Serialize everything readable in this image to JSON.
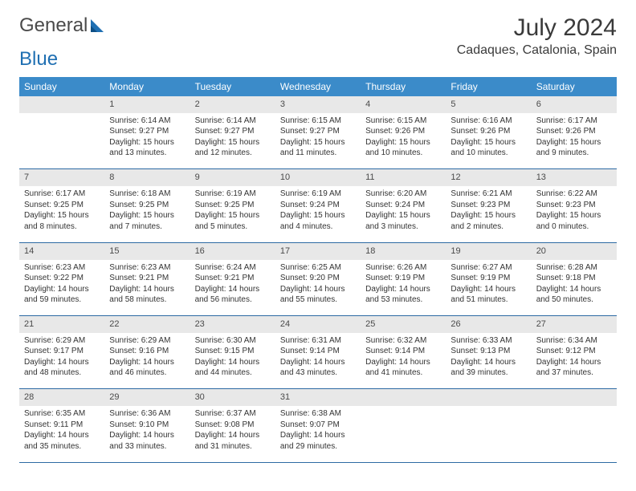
{
  "logo": {
    "part1": "General",
    "part2": "Blue"
  },
  "title": "July 2024",
  "location": "Cadaques, Catalonia, Spain",
  "colors": {
    "header_bg": "#3b8bc9",
    "header_text": "#ffffff",
    "daynum_bg": "#e8e8e8",
    "rule": "#2d6aa3",
    "logo_gray": "#4a4a4a",
    "logo_blue": "#1f6fb2"
  },
  "dayHeaders": [
    "Sunday",
    "Monday",
    "Tuesday",
    "Wednesday",
    "Thursday",
    "Friday",
    "Saturday"
  ],
  "weeks": [
    [
      null,
      {
        "n": "1",
        "sr": "6:14 AM",
        "ss": "9:27 PM",
        "dl": "15 hours and 13 minutes."
      },
      {
        "n": "2",
        "sr": "6:14 AM",
        "ss": "9:27 PM",
        "dl": "15 hours and 12 minutes."
      },
      {
        "n": "3",
        "sr": "6:15 AM",
        "ss": "9:27 PM",
        "dl": "15 hours and 11 minutes."
      },
      {
        "n": "4",
        "sr": "6:15 AM",
        "ss": "9:26 PM",
        "dl": "15 hours and 10 minutes."
      },
      {
        "n": "5",
        "sr": "6:16 AM",
        "ss": "9:26 PM",
        "dl": "15 hours and 10 minutes."
      },
      {
        "n": "6",
        "sr": "6:17 AM",
        "ss": "9:26 PM",
        "dl": "15 hours and 9 minutes."
      }
    ],
    [
      {
        "n": "7",
        "sr": "6:17 AM",
        "ss": "9:25 PM",
        "dl": "15 hours and 8 minutes."
      },
      {
        "n": "8",
        "sr": "6:18 AM",
        "ss": "9:25 PM",
        "dl": "15 hours and 7 minutes."
      },
      {
        "n": "9",
        "sr": "6:19 AM",
        "ss": "9:25 PM",
        "dl": "15 hours and 5 minutes."
      },
      {
        "n": "10",
        "sr": "6:19 AM",
        "ss": "9:24 PM",
        "dl": "15 hours and 4 minutes."
      },
      {
        "n": "11",
        "sr": "6:20 AM",
        "ss": "9:24 PM",
        "dl": "15 hours and 3 minutes."
      },
      {
        "n": "12",
        "sr": "6:21 AM",
        "ss": "9:23 PM",
        "dl": "15 hours and 2 minutes."
      },
      {
        "n": "13",
        "sr": "6:22 AM",
        "ss": "9:23 PM",
        "dl": "15 hours and 0 minutes."
      }
    ],
    [
      {
        "n": "14",
        "sr": "6:23 AM",
        "ss": "9:22 PM",
        "dl": "14 hours and 59 minutes."
      },
      {
        "n": "15",
        "sr": "6:23 AM",
        "ss": "9:21 PM",
        "dl": "14 hours and 58 minutes."
      },
      {
        "n": "16",
        "sr": "6:24 AM",
        "ss": "9:21 PM",
        "dl": "14 hours and 56 minutes."
      },
      {
        "n": "17",
        "sr": "6:25 AM",
        "ss": "9:20 PM",
        "dl": "14 hours and 55 minutes."
      },
      {
        "n": "18",
        "sr": "6:26 AM",
        "ss": "9:19 PM",
        "dl": "14 hours and 53 minutes."
      },
      {
        "n": "19",
        "sr": "6:27 AM",
        "ss": "9:19 PM",
        "dl": "14 hours and 51 minutes."
      },
      {
        "n": "20",
        "sr": "6:28 AM",
        "ss": "9:18 PM",
        "dl": "14 hours and 50 minutes."
      }
    ],
    [
      {
        "n": "21",
        "sr": "6:29 AM",
        "ss": "9:17 PM",
        "dl": "14 hours and 48 minutes."
      },
      {
        "n": "22",
        "sr": "6:29 AM",
        "ss": "9:16 PM",
        "dl": "14 hours and 46 minutes."
      },
      {
        "n": "23",
        "sr": "6:30 AM",
        "ss": "9:15 PM",
        "dl": "14 hours and 44 minutes."
      },
      {
        "n": "24",
        "sr": "6:31 AM",
        "ss": "9:14 PM",
        "dl": "14 hours and 43 minutes."
      },
      {
        "n": "25",
        "sr": "6:32 AM",
        "ss": "9:14 PM",
        "dl": "14 hours and 41 minutes."
      },
      {
        "n": "26",
        "sr": "6:33 AM",
        "ss": "9:13 PM",
        "dl": "14 hours and 39 minutes."
      },
      {
        "n": "27",
        "sr": "6:34 AM",
        "ss": "9:12 PM",
        "dl": "14 hours and 37 minutes."
      }
    ],
    [
      {
        "n": "28",
        "sr": "6:35 AM",
        "ss": "9:11 PM",
        "dl": "14 hours and 35 minutes."
      },
      {
        "n": "29",
        "sr": "6:36 AM",
        "ss": "9:10 PM",
        "dl": "14 hours and 33 minutes."
      },
      {
        "n": "30",
        "sr": "6:37 AM",
        "ss": "9:08 PM",
        "dl": "14 hours and 31 minutes."
      },
      {
        "n": "31",
        "sr": "6:38 AM",
        "ss": "9:07 PM",
        "dl": "14 hours and 29 minutes."
      },
      null,
      null,
      null
    ]
  ],
  "labels": {
    "sunrise": "Sunrise: ",
    "sunset": "Sunset: ",
    "daylight": "Daylight: "
  }
}
